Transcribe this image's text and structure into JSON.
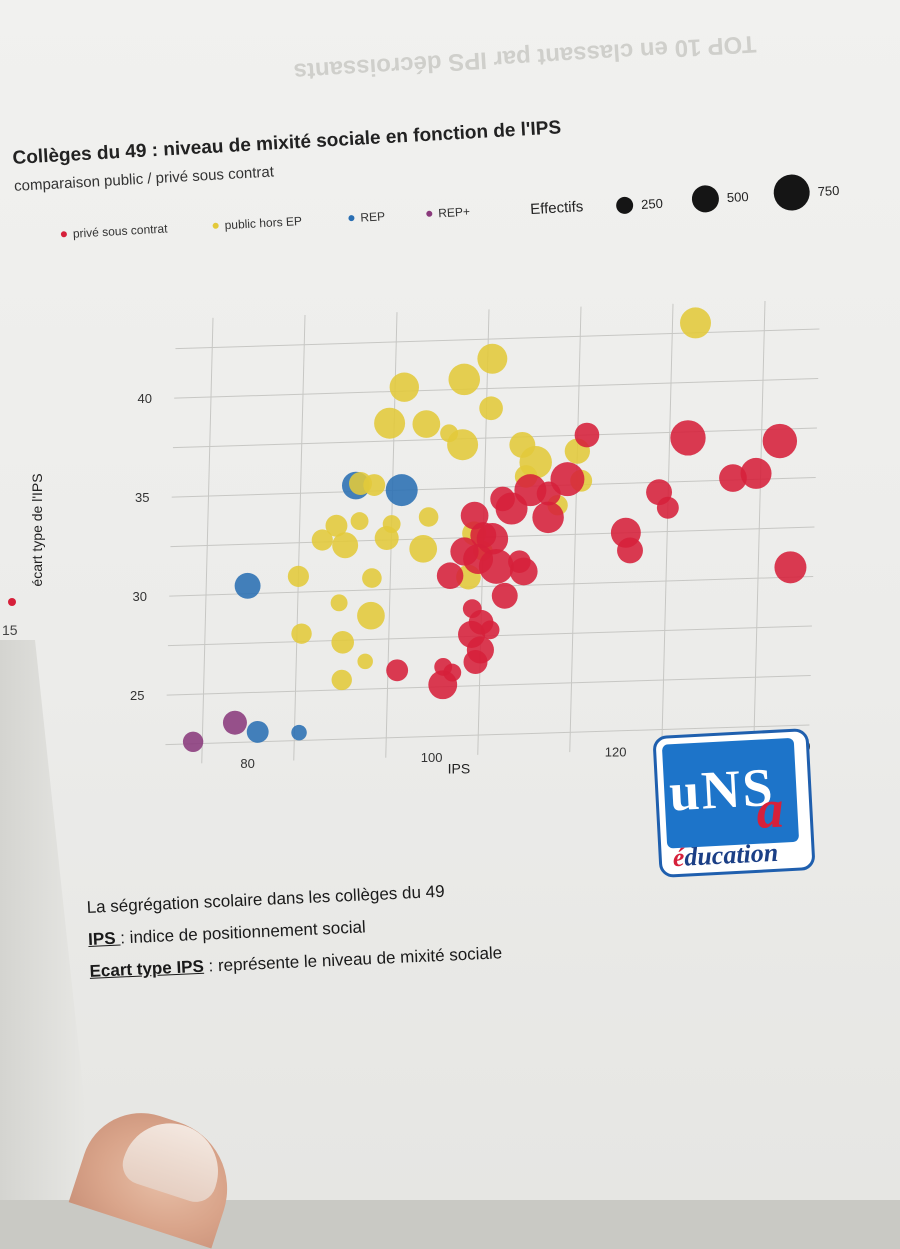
{
  "background_header_text": {
    "line1": "TOP 10 en classant par IPS décroissants",
    "line2": ""
  },
  "chart_data": {
    "type": "scatter",
    "title": "Collèges du 49 : niveau de mixité sociale en fonction de l'IPS",
    "subtitle": "comparaison public / privé sous contrat",
    "xlabel": "IPS",
    "ylabel": "écart type de l'IPS",
    "xticks": [
      80,
      100,
      120,
      140
    ],
    "yticks": [
      25,
      30,
      35,
      40
    ],
    "xlim": [
      71,
      141
    ],
    "ylim": [
      21.5,
      44
    ],
    "grid": true,
    "legend": {
      "placement": "top",
      "series_items": [
        {
          "name": "privé sous contrat",
          "color": "#d6203a"
        },
        {
          "name": "public hors EP",
          "color": "#e3c93a"
        },
        {
          "name": "REP",
          "color": "#2a6fb3"
        },
        {
          "name": "REP+",
          "color": "#8a3a7c"
        }
      ],
      "size_title": "Effectifs",
      "size_items": [
        {
          "label": "250",
          "value": 250
        },
        {
          "label": "500",
          "value": 500
        },
        {
          "label": "750",
          "value": 750
        }
      ]
    },
    "series": [
      {
        "name": "REP+",
        "color": "#8a3a7c",
        "points": [
          {
            "x": 74,
            "y": 22.6,
            "size": 260
          },
          {
            "x": 78.5,
            "y": 23.5,
            "size": 360
          }
        ]
      },
      {
        "name": "REP",
        "color": "#2a6fb3",
        "points": [
          {
            "x": 81,
            "y": 23.0,
            "size": 300
          },
          {
            "x": 85.5,
            "y": 22.9,
            "size": 150
          },
          {
            "x": 79.5,
            "y": 30.4,
            "size": 420
          },
          {
            "x": 91,
            "y": 35.3,
            "size": 480
          },
          {
            "x": 96,
            "y": 35.0,
            "size": 640
          }
        ]
      },
      {
        "name": "public hors EP",
        "color": "#e3c93a",
        "points": [
          {
            "x": 96,
            "y": 40.2,
            "size": 540
          },
          {
            "x": 102.5,
            "y": 40.5,
            "size": 620
          },
          {
            "x": 105.5,
            "y": 41.5,
            "size": 560
          },
          {
            "x": 127.5,
            "y": 43.0,
            "size": 600
          },
          {
            "x": 94.5,
            "y": 38.4,
            "size": 600
          },
          {
            "x": 98.5,
            "y": 38.3,
            "size": 480
          },
          {
            "x": 101,
            "y": 37.8,
            "size": 200
          },
          {
            "x": 102.5,
            "y": 37.2,
            "size": 600
          },
          {
            "x": 105.5,
            "y": 39.0,
            "size": 350
          },
          {
            "x": 109,
            "y": 37.1,
            "size": 420
          },
          {
            "x": 110.5,
            "y": 36.2,
            "size": 660
          },
          {
            "x": 115,
            "y": 36.7,
            "size": 400
          },
          {
            "x": 115.5,
            "y": 35.2,
            "size": 300
          },
          {
            "x": 91.5,
            "y": 35.4,
            "size": 330
          },
          {
            "x": 93,
            "y": 35.3,
            "size": 300
          },
          {
            "x": 89,
            "y": 33.3,
            "size": 300
          },
          {
            "x": 87.5,
            "y": 32.6,
            "size": 280
          },
          {
            "x": 90,
            "y": 32.3,
            "size": 420
          },
          {
            "x": 91.5,
            "y": 33.5,
            "size": 200
          },
          {
            "x": 94.5,
            "y": 32.6,
            "size": 360
          },
          {
            "x": 95,
            "y": 33.3,
            "size": 200
          },
          {
            "x": 99,
            "y": 33.6,
            "size": 240
          },
          {
            "x": 98.5,
            "y": 32.0,
            "size": 480
          },
          {
            "x": 104,
            "y": 32.7,
            "size": 360
          },
          {
            "x": 85,
            "y": 30.8,
            "size": 280
          },
          {
            "x": 93,
            "y": 30.6,
            "size": 240
          },
          {
            "x": 103.5,
            "y": 30.5,
            "size": 380
          },
          {
            "x": 105,
            "y": 31.8,
            "size": 240
          },
          {
            "x": 89.5,
            "y": 29.4,
            "size": 180
          },
          {
            "x": 93,
            "y": 28.7,
            "size": 480
          },
          {
            "x": 85.5,
            "y": 27.9,
            "size": 260
          },
          {
            "x": 90,
            "y": 27.4,
            "size": 320
          },
          {
            "x": 92.5,
            "y": 26.4,
            "size": 150
          },
          {
            "x": 90,
            "y": 25.5,
            "size": 260
          },
          {
            "x": 109.5,
            "y": 35.5,
            "size": 320
          },
          {
            "x": 113,
            "y": 34.0,
            "size": 260
          }
        ]
      },
      {
        "name": "privé sous contrat",
        "color": "#d6203a",
        "points": [
          {
            "x": 116,
            "y": 37.5,
            "size": 380
          },
          {
            "x": 127,
            "y": 37.2,
            "size": 780
          },
          {
            "x": 137,
            "y": 36.9,
            "size": 740
          },
          {
            "x": 132,
            "y": 35.1,
            "size": 480
          },
          {
            "x": 134.5,
            "y": 35.3,
            "size": 600
          },
          {
            "x": 124,
            "y": 34.5,
            "size": 420
          },
          {
            "x": 125,
            "y": 33.7,
            "size": 300
          },
          {
            "x": 114,
            "y": 35.3,
            "size": 720
          },
          {
            "x": 110,
            "y": 34.8,
            "size": 640
          },
          {
            "x": 112,
            "y": 34.6,
            "size": 360
          },
          {
            "x": 107,
            "y": 34.4,
            "size": 380
          },
          {
            "x": 108,
            "y": 33.9,
            "size": 640
          },
          {
            "x": 104,
            "y": 33.6,
            "size": 480
          },
          {
            "x": 105,
            "y": 32.6,
            "size": 420
          },
          {
            "x": 106,
            "y": 32.4,
            "size": 620
          },
          {
            "x": 103,
            "y": 31.8,
            "size": 500
          },
          {
            "x": 104.5,
            "y": 31.4,
            "size": 560
          },
          {
            "x": 106.5,
            "y": 31.0,
            "size": 760
          },
          {
            "x": 109,
            "y": 31.2,
            "size": 320
          },
          {
            "x": 112,
            "y": 33.4,
            "size": 620
          },
          {
            "x": 120.5,
            "y": 32.5,
            "size": 560
          },
          {
            "x": 121,
            "y": 31.6,
            "size": 420
          },
          {
            "x": 109.5,
            "y": 30.7,
            "size": 480
          },
          {
            "x": 101.5,
            "y": 30.6,
            "size": 440
          },
          {
            "x": 107.5,
            "y": 29.5,
            "size": 420
          },
          {
            "x": 104,
            "y": 28.9,
            "size": 220
          },
          {
            "x": 105,
            "y": 28.2,
            "size": 380
          },
          {
            "x": 104,
            "y": 27.6,
            "size": 460
          },
          {
            "x": 106,
            "y": 27.8,
            "size": 220
          },
          {
            "x": 105,
            "y": 26.8,
            "size": 460
          },
          {
            "x": 104.5,
            "y": 26.2,
            "size": 360
          },
          {
            "x": 101,
            "y": 26.0,
            "size": 200
          },
          {
            "x": 102,
            "y": 25.7,
            "size": 200
          },
          {
            "x": 101,
            "y": 25.1,
            "size": 520
          },
          {
            "x": 96,
            "y": 25.9,
            "size": 300
          },
          {
            "x": 138.5,
            "y": 30.5,
            "size": 640
          }
        ]
      }
    ]
  },
  "clipped_left": {
    "tick": "15"
  },
  "logo": {
    "mark": "uNS",
    "mark_a": "a",
    "sub_a": "é",
    "sub_rest": "ducation"
  },
  "notes": {
    "line1": "La ségrégation scolaire dans les collèges du 49",
    "line2_term": "IPS ",
    "line2_rest": ": indice de positionnement social",
    "line3_term": "Ecart type IPS",
    "line3_rest": " : représente le niveau de mixité sociale"
  }
}
